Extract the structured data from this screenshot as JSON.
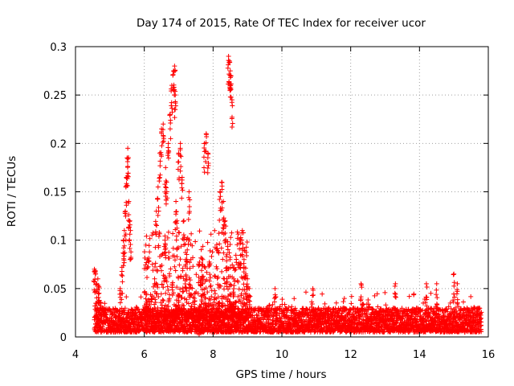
{
  "chart_data": {
    "type": "scatter",
    "title": "Day 174 of 2015, Rate Of TEC Index for receiver ucor",
    "xlabel": "GPS time / hours",
    "ylabel": "ROTI / TECUs",
    "xlim": [
      4,
      16
    ],
    "ylim": [
      0,
      0.3
    ],
    "xticks": [
      4,
      6,
      8,
      10,
      12,
      14,
      16
    ],
    "yticks": [
      0,
      0.05,
      0.1,
      0.15,
      0.2,
      0.25,
      0.3
    ],
    "xtick_labels": [
      "4",
      "6",
      "8",
      "10",
      "12",
      "14",
      "16"
    ],
    "ytick_labels": [
      "0",
      "0.05",
      "0.1",
      "0.15",
      "0.2",
      "0.25",
      "0.3"
    ],
    "grid": true,
    "marker": "+",
    "marker_color": "#ff0000",
    "x_range_observed": [
      4.55,
      15.8
    ],
    "baseline_band": {
      "x": [
        4.55,
        15.8
      ],
      "y_min": 0.005,
      "y_max": 0.03
    },
    "series": [
      {
        "name": "ROTI",
        "x": [
          4.55,
          4.58,
          4.62,
          4.65,
          4.68,
          4.72,
          5.3,
          5.35,
          5.4,
          5.42,
          5.45,
          5.48,
          5.5,
          5.52,
          5.55,
          5.58,
          5.6,
          6.3,
          6.35,
          6.4,
          6.45,
          6.5,
          6.55,
          6.6,
          6.62,
          6.65,
          6.7,
          6.75,
          6.8,
          6.85,
          6.88,
          6.9,
          6.92,
          6.95,
          7.0,
          7.05,
          7.1,
          7.15,
          7.2,
          7.25,
          7.3,
          7.6,
          7.65,
          7.7,
          7.75,
          7.8,
          7.85,
          8.2,
          8.25,
          8.3,
          8.35,
          8.4,
          8.45,
          8.48,
          8.5,
          8.52,
          8.55,
          8.6,
          8.8,
          8.85,
          8.9,
          8.95,
          9.0,
          9.05,
          9.8,
          10.9,
          12.3,
          13.3,
          14.2,
          14.5,
          15.0,
          15.1
        ],
        "y": [
          0.07,
          0.068,
          0.055,
          0.06,
          0.052,
          0.035,
          0.05,
          0.072,
          0.1,
          0.11,
          0.13,
          0.165,
          0.185,
          0.195,
          0.14,
          0.12,
          0.11,
          0.06,
          0.13,
          0.155,
          0.19,
          0.215,
          0.22,
          0.1,
          0.175,
          0.16,
          0.2,
          0.23,
          0.26,
          0.275,
          0.28,
          0.25,
          0.14,
          0.12,
          0.19,
          0.2,
          0.165,
          0.12,
          0.08,
          0.09,
          0.15,
          0.03,
          0.06,
          0.08,
          0.2,
          0.21,
          0.19,
          0.15,
          0.16,
          0.14,
          0.12,
          0.085,
          0.29,
          0.285,
          0.275,
          0.27,
          0.245,
          0.06,
          0.1,
          0.11,
          0.08,
          0.065,
          0.06,
          0.05,
          0.05,
          0.05,
          0.055,
          0.055,
          0.055,
          0.055,
          0.065,
          0.055
        ]
      }
    ]
  }
}
